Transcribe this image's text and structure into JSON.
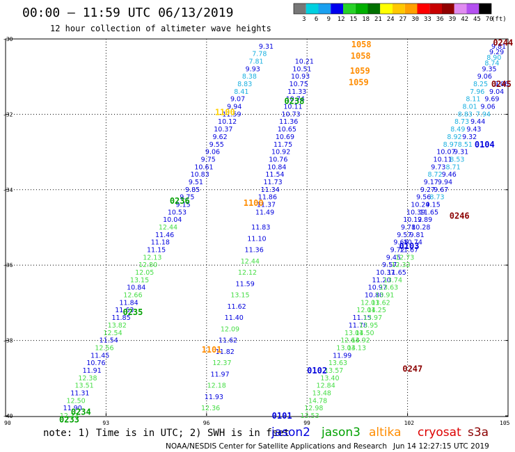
{
  "header": {
    "title": "00:00 – 11:59 UTC 06/13/2019",
    "subtitle": "12 hour collection of altimeter wave heights"
  },
  "color_bar": {
    "values": [
      "3",
      "6",
      "9",
      "12",
      "15",
      "18",
      "21",
      "24",
      "27",
      "30",
      "33",
      "36",
      "39",
      "42",
      "45",
      "70"
    ],
    "unit": "(ft)",
    "colors": [
      "#777777",
      "#00d0e0",
      "#1aa0f0",
      "#0000ee",
      "#28d228",
      "#00b000",
      "#007000",
      "#ffff00",
      "#ffc800",
      "#ffa000",
      "#ff0000",
      "#c80000",
      "#900000",
      "#e08cf0",
      "#b450f0",
      "#000000"
    ]
  },
  "footer": {
    "note": "note: 1) Time is in UTC; 2) SWH is in feet",
    "credit": "NOAA/NESDIS Center for Satellite Applications and Research",
    "timestamp": "Jun 14 12:27:15 UTC 2019"
  },
  "legend": [
    {
      "name": "jason2",
      "color": "#0000dd"
    },
    {
      "name": "jason3",
      "color": "#00a000"
    },
    {
      "name": "altika",
      "color": "#ff8c00"
    },
    {
      "name": "cryosat",
      "color": "#dd0000"
    },
    {
      "name": "s3a",
      "color": "#8b0000"
    }
  ],
  "chart_data": {
    "type": "scatter",
    "xlim": [
      90,
      105
    ],
    "ylim": [
      -40,
      -30
    ],
    "x_ticks": [
      "90",
      "93",
      "96",
      "99",
      "102",
      "105"
    ],
    "y_ticks": [
      "-30",
      "-32",
      "-34",
      "-36",
      "-38",
      "-40"
    ],
    "grid": true,
    "colors": {
      "green": "#00a000",
      "lightgreen": "#44dd44",
      "blue": "#0000dd",
      "cyan": "#1ab0e0",
      "orange": "#ff8c00",
      "yellow": "#ffd000",
      "darkred": "#8b0000"
    },
    "series": [
      {
        "color": "blue",
        "points": [
          [
            97.78,
            -30.2,
            "9.31"
          ],
          [
            97.58,
            -30.4,
            "7.78"
          ],
          [
            97.48,
            -30.6,
            "7.81"
          ],
          [
            97.38,
            -30.8,
            "9.93"
          ],
          [
            97.28,
            -31.0,
            "8.38"
          ],
          [
            97.14,
            -31.2,
            "8.83"
          ],
          [
            97.04,
            -31.4,
            "8.41"
          ],
          [
            96.93,
            -31.6,
            "9.07"
          ],
          [
            96.83,
            -31.8,
            "9.94"
          ],
          [
            96.75,
            -32.0,
            "11.59"
          ],
          [
            96.62,
            -32.2,
            "10.12"
          ],
          [
            96.5,
            -32.4,
            "10.37"
          ],
          [
            96.4,
            -32.6,
            "9.62"
          ],
          [
            96.3,
            -32.8,
            "9.55"
          ],
          [
            96.18,
            -33.0,
            "9.06"
          ],
          [
            96.05,
            -33.2,
            "9.75"
          ],
          [
            95.92,
            -33.4,
            "10.61"
          ],
          [
            95.8,
            -33.6,
            "10.83"
          ],
          [
            95.68,
            -33.8,
            "9.51"
          ],
          [
            95.58,
            -34.0,
            "9.85"
          ],
          [
            95.42,
            -34.2,
            "9.75"
          ],
          [
            95.3,
            -34.4,
            "9.15"
          ],
          [
            95.12,
            -34.6,
            "10.53"
          ],
          [
            94.98,
            -34.8,
            "10.04"
          ],
          [
            94.85,
            -35.0,
            "12.44"
          ],
          [
            94.75,
            -35.2,
            "11.46"
          ],
          [
            94.62,
            -35.4,
            "11.18"
          ],
          [
            94.5,
            -35.6,
            "11.15"
          ],
          [
            94.38,
            -35.8,
            "12.13"
          ],
          [
            94.25,
            -36.0,
            "12.80"
          ],
          [
            94.15,
            -36.2,
            "12.05"
          ],
          [
            94.0,
            -36.4,
            "13.15"
          ],
          [
            93.9,
            -36.6,
            "10.84"
          ],
          [
            93.8,
            -36.8,
            "12.66"
          ],
          [
            93.68,
            -37.0,
            "11.84"
          ],
          [
            93.55,
            -37.2,
            "11.63"
          ],
          [
            93.45,
            -37.4,
            "11.85"
          ],
          [
            93.33,
            -37.6,
            "13.82"
          ],
          [
            93.2,
            -37.8,
            "12.54"
          ],
          [
            93.08,
            -38.0,
            "11.54"
          ],
          [
            92.95,
            -38.2,
            "12.56"
          ],
          [
            92.82,
            -38.4,
            "11.45"
          ],
          [
            92.7,
            -38.6,
            "10.76"
          ],
          [
            92.58,
            -38.8,
            "11.91"
          ],
          [
            92.45,
            -39.0,
            "12.38"
          ],
          [
            92.35,
            -39.2,
            "13.51"
          ],
          [
            92.22,
            -39.4,
            "11.31"
          ],
          [
            92.1,
            -39.6,
            "12.50"
          ],
          [
            92.0,
            -39.8,
            "11.90"
          ],
          [
            91.9,
            -40.0,
            "12.33"
          ]
        ]
      },
      {
        "color": "blue",
        "points": [
          [
            98.92,
            -30.6,
            "10.21"
          ],
          [
            98.85,
            -30.8,
            "10.51"
          ],
          [
            98.8,
            -31.0,
            "10.93"
          ],
          [
            98.75,
            -31.2,
            "10.75"
          ],
          [
            98.7,
            -31.4,
            "11.33"
          ],
          [
            98.65,
            -31.6,
            "10.74"
          ],
          [
            98.58,
            -31.8,
            "10.11"
          ],
          [
            98.52,
            -32.0,
            "10.73"
          ],
          [
            98.45,
            -32.2,
            "11.36"
          ],
          [
            98.4,
            -32.4,
            "10.65"
          ],
          [
            98.34,
            -32.6,
            "10.69"
          ],
          [
            98.28,
            -32.8,
            "11.75"
          ],
          [
            98.22,
            -33.0,
            "10.92"
          ],
          [
            98.14,
            -33.2,
            "10.76"
          ],
          [
            98.1,
            -33.4,
            "10.84"
          ],
          [
            98.04,
            -33.6,
            "11.54"
          ],
          [
            97.98,
            -33.8,
            "11.73"
          ],
          [
            97.9,
            -34.0,
            "11.34"
          ],
          [
            97.82,
            -34.2,
            "11.86"
          ],
          [
            97.78,
            -34.4,
            "11.37"
          ],
          [
            97.74,
            -34.6,
            "11.49"
          ],
          [
            97.62,
            -35.0,
            "11.83"
          ],
          [
            97.5,
            -35.3,
            "11.10"
          ],
          [
            97.42,
            -35.6,
            "11.36"
          ],
          [
            97.3,
            -35.9,
            "12.44"
          ],
          [
            97.22,
            -36.2,
            "12.12"
          ],
          [
            97.15,
            -36.5,
            "11.59"
          ],
          [
            97.0,
            -36.8,
            "13.15"
          ],
          [
            96.9,
            -37.1,
            "11.62"
          ],
          [
            96.82,
            -37.4,
            "11.40"
          ],
          [
            96.7,
            -37.7,
            "12.09"
          ],
          [
            96.64,
            -38.0,
            "11.62"
          ],
          [
            96.55,
            -38.3,
            "11.82"
          ],
          [
            96.46,
            -38.6,
            "12.37"
          ],
          [
            96.4,
            -38.9,
            "11.97"
          ],
          [
            96.3,
            -39.2,
            "12.18"
          ],
          [
            96.22,
            -39.5,
            "11.93"
          ],
          [
            96.12,
            -39.8,
            "12.36"
          ]
        ]
      },
      {
        "color": "cyan",
        "points": [
          [
            104.72,
            -30.2,
            "9.81"
          ],
          [
            104.66,
            -30.35,
            "9.29"
          ],
          [
            104.58,
            -30.5,
            "8.90"
          ],
          [
            104.52,
            -30.65,
            "8.74"
          ],
          [
            104.44,
            -30.8,
            "9.35"
          ],
          [
            104.3,
            -31.0,
            "9.06"
          ],
          [
            104.18,
            -31.2,
            "8.25"
          ],
          [
            104.08,
            -31.4,
            "7.96"
          ],
          [
            103.96,
            -31.6,
            "8.11"
          ],
          [
            103.86,
            -31.8,
            "8.01"
          ],
          [
            103.72,
            -32.0,
            "8.83"
          ],
          [
            103.62,
            -32.2,
            "8.73"
          ],
          [
            103.5,
            -32.4,
            "8.49"
          ],
          [
            103.4,
            -32.6,
            "8.92"
          ],
          [
            103.28,
            -32.8,
            "8.97"
          ],
          [
            103.15,
            -33.0,
            "10.07"
          ],
          [
            103.05,
            -33.2,
            "10.11"
          ],
          [
            102.92,
            -33.4,
            "9.73"
          ],
          [
            102.82,
            -33.6,
            "8.72"
          ],
          [
            102.7,
            -33.8,
            "9.17"
          ],
          [
            102.6,
            -34.0,
            "9.27"
          ],
          [
            102.48,
            -34.2,
            "9.56"
          ],
          [
            102.38,
            -34.4,
            "10.24"
          ],
          [
            102.25,
            -34.6,
            "10.39"
          ],
          [
            102.15,
            -34.8,
            "10.12"
          ],
          [
            102.02,
            -35.0,
            "9.78"
          ],
          [
            101.9,
            -35.2,
            "9.57"
          ],
          [
            101.8,
            -35.4,
            "9.68"
          ],
          [
            101.7,
            -35.6,
            "9.72"
          ],
          [
            101.58,
            -35.8,
            "9.45"
          ],
          [
            101.46,
            -36.0,
            "9.57"
          ],
          [
            101.34,
            -36.2,
            "10.37"
          ],
          [
            101.22,
            -36.4,
            "11.20"
          ],
          [
            101.1,
            -36.6,
            "10.97"
          ],
          [
            101.0,
            -36.8,
            "10.80"
          ],
          [
            100.88,
            -37.0,
            "12.01"
          ],
          [
            100.76,
            -37.2,
            "12.01"
          ],
          [
            100.64,
            -37.4,
            "11.15"
          ],
          [
            100.52,
            -37.6,
            "11.78"
          ],
          [
            100.4,
            -37.8,
            "13.01"
          ],
          [
            100.28,
            -38.0,
            "12.64"
          ],
          [
            100.16,
            -38.2,
            "13.03"
          ],
          [
            100.05,
            -38.4,
            "11.99"
          ],
          [
            99.92,
            -38.6,
            "13.63"
          ],
          [
            99.8,
            -38.8,
            "13.57"
          ],
          [
            99.68,
            -39.0,
            "13.40"
          ],
          [
            99.56,
            -39.2,
            "12.84"
          ],
          [
            99.44,
            -39.4,
            "13.48"
          ],
          [
            99.32,
            -39.6,
            "14.78"
          ],
          [
            99.2,
            -39.8,
            "12.98"
          ],
          [
            99.08,
            -40.0,
            "13.53"
          ]
        ]
      },
      {
        "color": "blue",
        "points": [
          [
            104.8,
            -31.2,
            "9.06"
          ],
          [
            104.66,
            -31.4,
            "9.04"
          ],
          [
            104.52,
            -31.6,
            "9.69"
          ],
          [
            104.4,
            -31.8,
            "9.06"
          ],
          [
            104.26,
            -32.0,
            "7.94"
          ],
          [
            104.1,
            -32.2,
            "9.44"
          ],
          [
            103.98,
            -32.4,
            "9.43"
          ],
          [
            103.85,
            -32.6,
            "9.32"
          ],
          [
            103.72,
            -32.8,
            "8.51"
          ],
          [
            103.6,
            -33.0,
            "9.31"
          ],
          [
            103.48,
            -33.2,
            "8.53"
          ],
          [
            103.36,
            -33.4,
            "8.71"
          ],
          [
            103.24,
            -33.6,
            "9.46"
          ],
          [
            103.12,
            -33.8,
            "9.94"
          ],
          [
            103.0,
            -34.0,
            "9.67"
          ],
          [
            102.88,
            -34.2,
            "8.73"
          ],
          [
            102.76,
            -34.4,
            "9.15"
          ],
          [
            102.64,
            -34.6,
            "11.65"
          ],
          [
            102.52,
            -34.8,
            "9.89"
          ],
          [
            102.4,
            -35.0,
            "10.28"
          ],
          [
            102.28,
            -35.2,
            "9.81"
          ],
          [
            102.16,
            -35.4,
            "10.74"
          ],
          [
            102.04,
            -35.6,
            "11.67"
          ],
          [
            101.92,
            -35.8,
            "12.73"
          ],
          [
            101.8,
            -36.0,
            "12.32"
          ],
          [
            101.68,
            -36.2,
            "11.65"
          ],
          [
            101.56,
            -36.4,
            "13.74"
          ],
          [
            101.44,
            -36.6,
            "13.63"
          ],
          [
            101.32,
            -36.8,
            "13.91"
          ],
          [
            101.2,
            -37.0,
            "13.62"
          ],
          [
            101.08,
            -37.2,
            "14.25"
          ],
          [
            100.96,
            -37.4,
            "13.97"
          ],
          [
            100.84,
            -37.6,
            "13.95"
          ],
          [
            100.72,
            -37.8,
            "14.50"
          ],
          [
            100.6,
            -38.0,
            "13.92"
          ],
          [
            100.48,
            -38.2,
            "14.13"
          ]
        ]
      }
    ],
    "time_labels": [
      {
        "x": 100.62,
        "y": -30.15,
        "text": "1058",
        "color": "orange"
      },
      {
        "x": 100.6,
        "y": -30.45,
        "text": "1058",
        "color": "orange"
      },
      {
        "x": 100.58,
        "y": -30.85,
        "text": "1059",
        "color": "orange"
      },
      {
        "x": 100.54,
        "y": -31.15,
        "text": "1059",
        "color": "orange"
      },
      {
        "x": 98.62,
        "y": -31.65,
        "text": "0238",
        "color": "green"
      },
      {
        "x": 96.55,
        "y": -31.95,
        "text": "1100",
        "color": "yellow"
      },
      {
        "x": 95.2,
        "y": -34.3,
        "text": "0236",
        "color": "green"
      },
      {
        "x": 97.4,
        "y": -34.35,
        "text": "1100",
        "color": "orange"
      },
      {
        "x": 104.85,
        "y": -30.1,
        "text": "0244",
        "color": "darkred"
      },
      {
        "x": 104.8,
        "y": -31.2,
        "text": "0245",
        "color": "darkred"
      },
      {
        "x": 104.3,
        "y": -32.8,
        "text": "0104",
        "color": "blue"
      },
      {
        "x": 103.55,
        "y": -34.7,
        "text": "0246",
        "color": "darkred"
      },
      {
        "x": 102.05,
        "y": -35.5,
        "text": "0103",
        "color": "blue"
      },
      {
        "x": 93.8,
        "y": -37.25,
        "text": "0235",
        "color": "green"
      },
      {
        "x": 96.15,
        "y": -38.25,
        "text": "1101",
        "color": "orange"
      },
      {
        "x": 99.3,
        "y": -38.8,
        "text": "0102",
        "color": "blue"
      },
      {
        "x": 102.15,
        "y": -38.75,
        "text": "0247",
        "color": "darkred"
      },
      {
        "x": 92.25,
        "y": -39.9,
        "text": "0234",
        "color": "green"
      },
      {
        "x": 91.9,
        "y": -40.1,
        "text": "0233",
        "color": "green"
      },
      {
        "x": 98.25,
        "y": -40.0,
        "text": "0101",
        "color": "blue"
      }
    ]
  }
}
